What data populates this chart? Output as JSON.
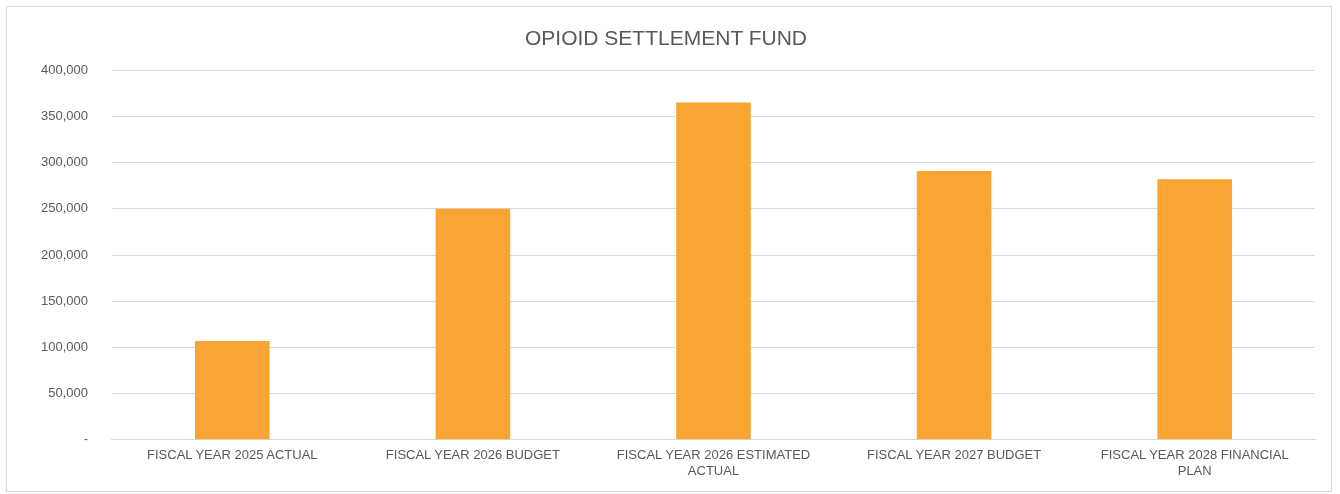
{
  "chart_data": {
    "type": "bar",
    "title": "OPIOID SETTLEMENT FUND",
    "categories": [
      "FISCAL YEAR 2025 ACTUAL",
      "FISCAL YEAR 2026 BUDGET",
      "FISCAL YEAR 2026 ESTIMATED ACTUAL",
      "FISCAL YEAR 2027 BUDGET",
      "FISCAL YEAR 2028 FINANCIAL PLAN"
    ],
    "values": [
      107000,
      250000,
      365000,
      291000,
      282000
    ],
    "color": "#f9a533",
    "ylim": [
      0,
      400000
    ],
    "yticks": [
      {
        "value": 0,
        "label": "-"
      },
      {
        "value": 50000,
        "label": "50,000"
      },
      {
        "value": 100000,
        "label": "100,000"
      },
      {
        "value": 150000,
        "label": "150,000"
      },
      {
        "value": 200000,
        "label": "200,000"
      },
      {
        "value": 250000,
        "label": "250,000"
      },
      {
        "value": 300000,
        "label": "300,000"
      },
      {
        "value": 350000,
        "label": "350,000"
      },
      {
        "value": 400000,
        "label": "400,000"
      }
    ],
    "grid": "y",
    "legend": false
  }
}
